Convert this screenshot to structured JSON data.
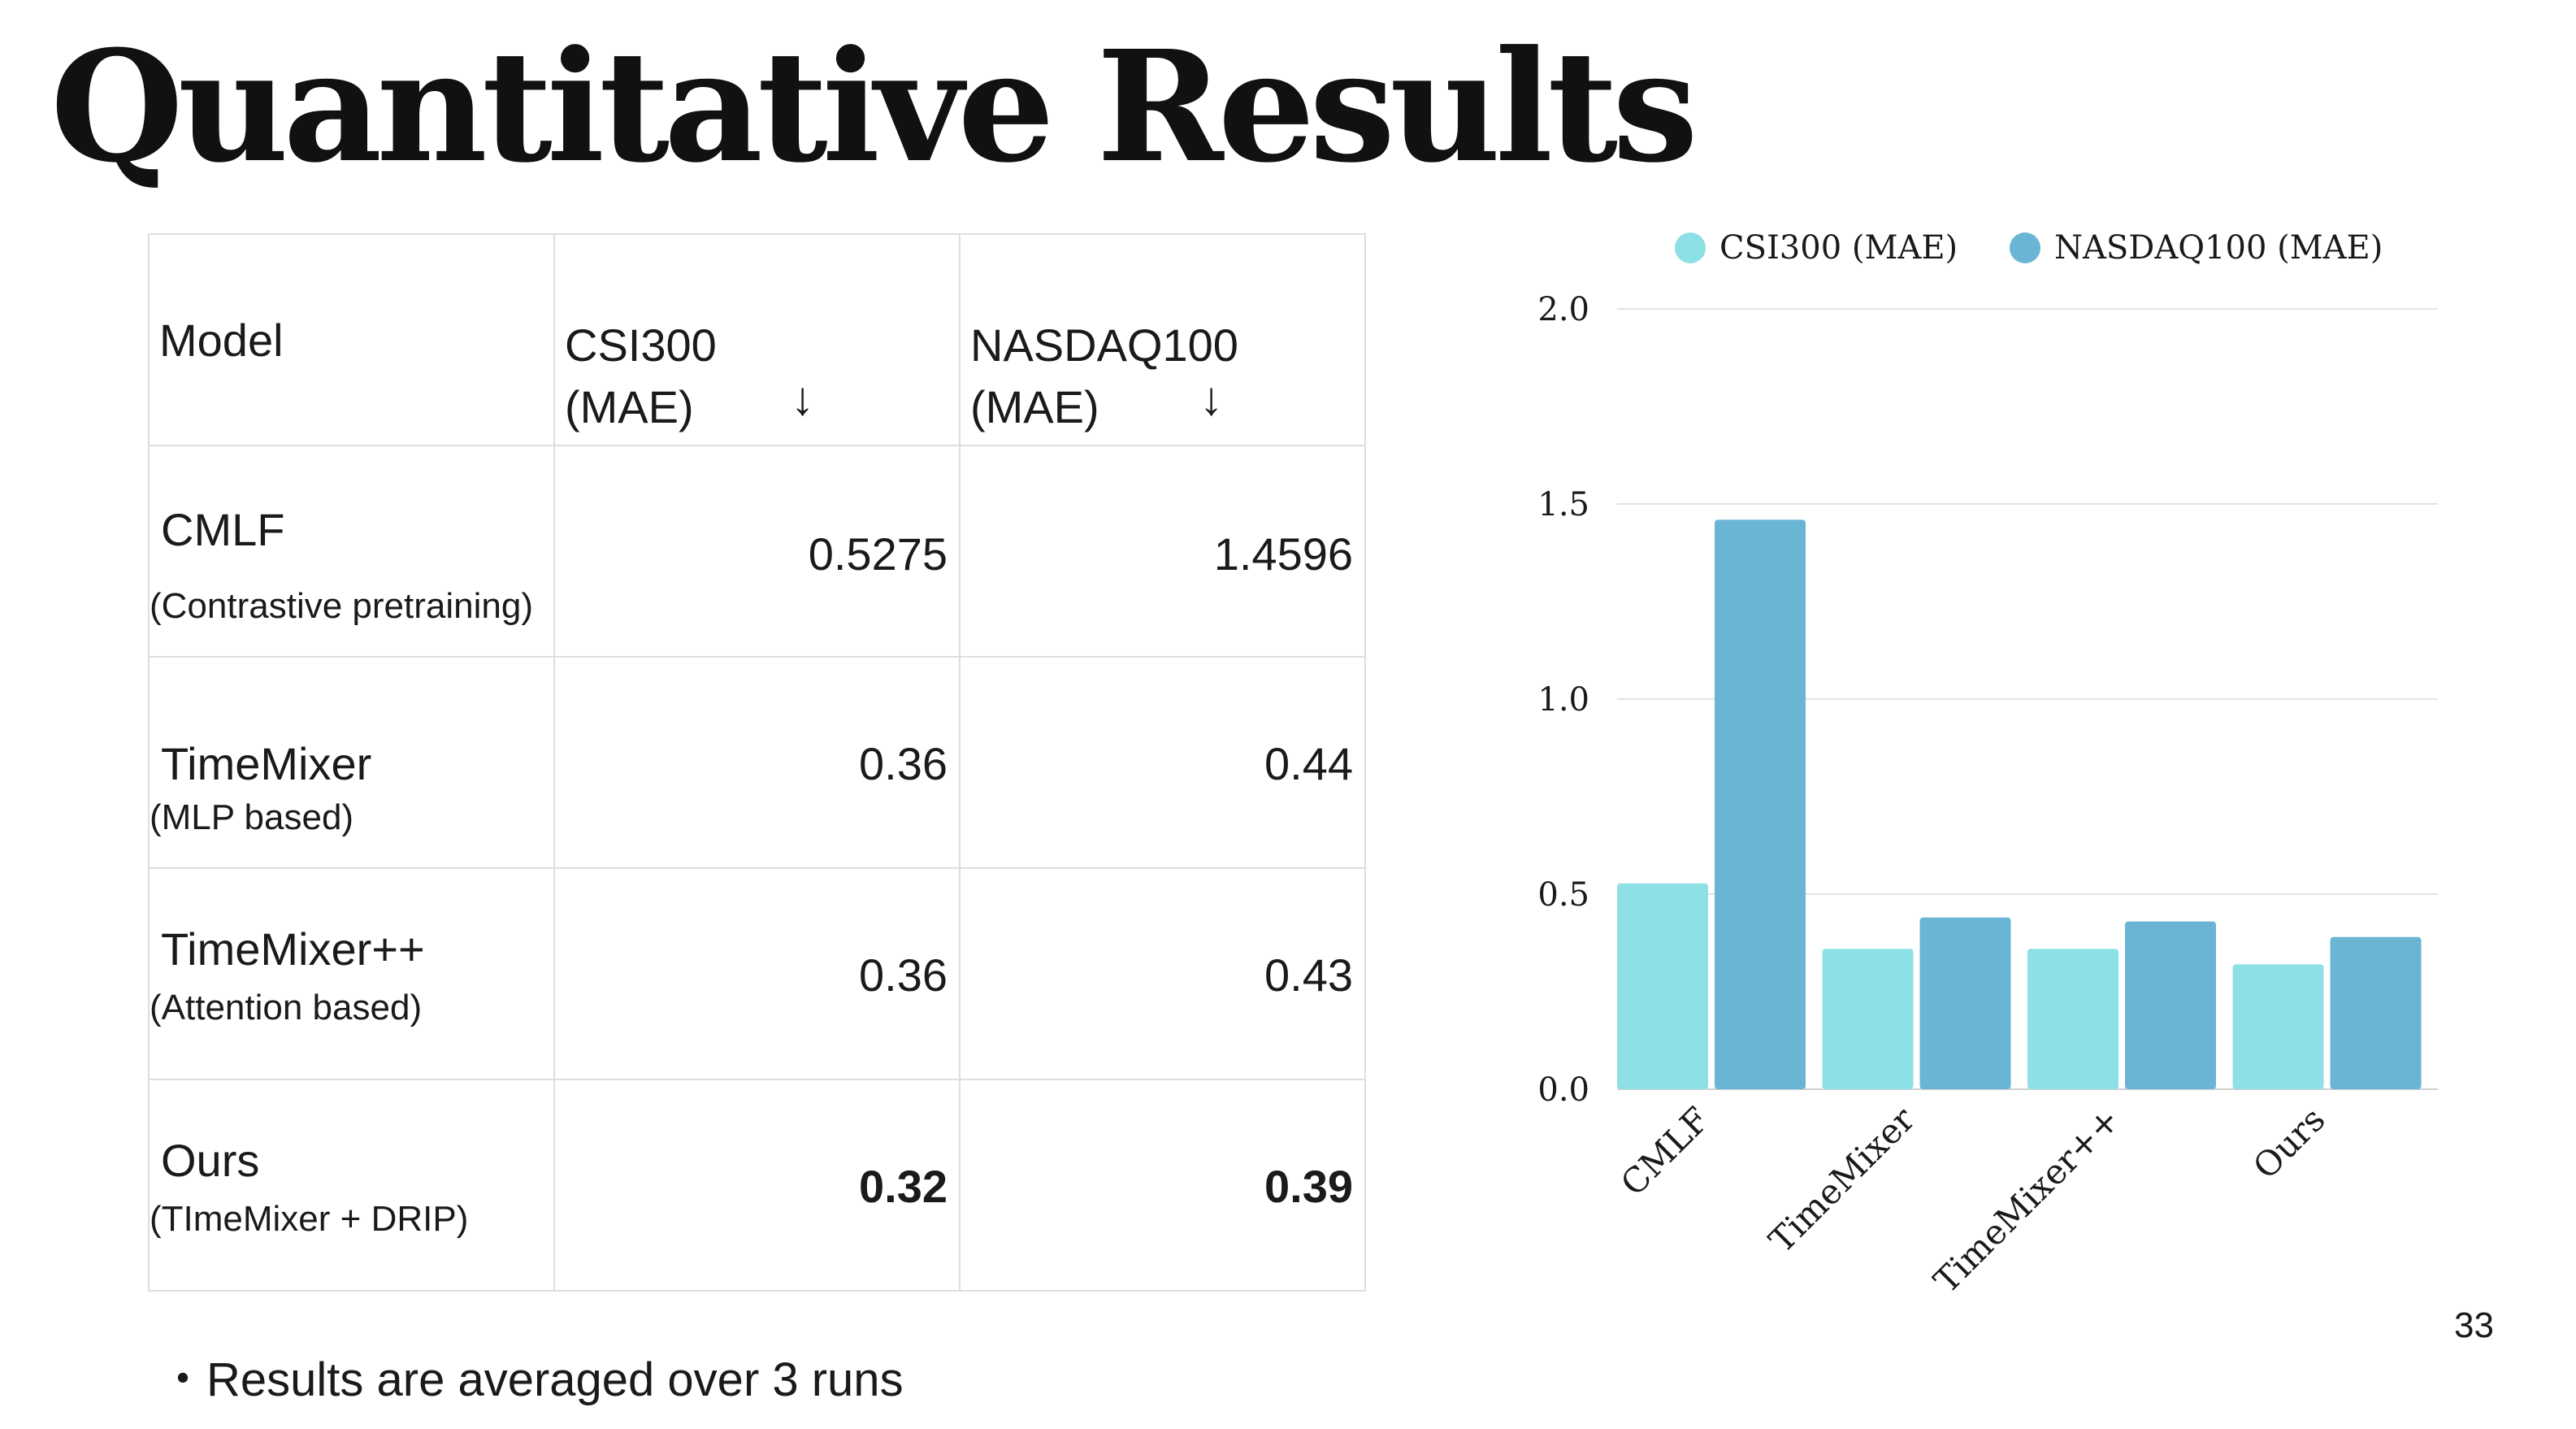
{
  "title": "Quantitative Results",
  "table": {
    "headers": {
      "model": "Model",
      "csi_line1": "CSI300",
      "csi_line2": "(MAE)",
      "nasdaq_line1": "NASDAQ100",
      "nasdaq_line2": "(MAE)",
      "arrow": "↓"
    },
    "rows": [
      {
        "name": "CMLF",
        "sub": "(Contrastive pretraining)",
        "csi": "0.5275",
        "nasdaq": "1.4596"
      },
      {
        "name": "TimeMixer",
        "sub": "(MLP based)",
        "csi": "0.36",
        "nasdaq": "0.44"
      },
      {
        "name": "TimeMixer++",
        "sub": "(Attention based)",
        "csi": "0.36",
        "nasdaq": "0.43"
      },
      {
        "name": "Ours",
        "sub": "(TImeMixer + DRIP)",
        "csi": "0.32",
        "nasdaq": "0.39"
      }
    ]
  },
  "note": "・Results are averaged over 3 runs",
  "page_number": "33",
  "chart_data": {
    "type": "bar",
    "categories": [
      "CMLF",
      "TimeMixer",
      "TimeMixer++",
      "Ours"
    ],
    "series": [
      {
        "name": "CSI300 (MAE)",
        "values": [
          0.5275,
          0.36,
          0.36,
          0.32
        ],
        "color": "#8de0e6"
      },
      {
        "name": "NASDAQ100 (MAE)",
        "values": [
          1.4596,
          0.44,
          0.43,
          0.39
        ],
        "color": "#6ab4d4"
      }
    ],
    "yticks": [
      "0.0",
      "0.5",
      "1.0",
      "1.5",
      "2.0"
    ],
    "ylim": [
      0,
      2.0
    ],
    "grid": true,
    "legend": "top"
  }
}
